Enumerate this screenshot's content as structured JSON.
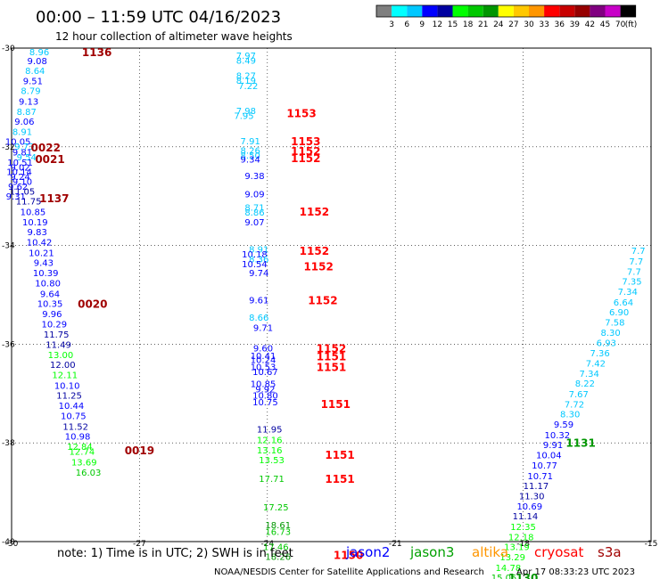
{
  "header": {
    "title": "00:00 – 11:59 UTC 04/16/2023",
    "subtitle": "12 hour collection of altimeter wave heights"
  },
  "colorbar": {
    "labels": [
      "3",
      "6",
      "9",
      "12",
      "15",
      "18",
      "21",
      "24",
      "27",
      "30",
      "33",
      "36",
      "39",
      "42",
      "45",
      "70"
    ],
    "unit": "(ft)",
    "colors": [
      "#7f7f7f",
      "#00ffff",
      "#00c8ff",
      "#0000ff",
      "#0000a0",
      "#00ff00",
      "#00c800",
      "#009600",
      "#ffff00",
      "#ffc800",
      "#ff9600",
      "#ff0000",
      "#c80000",
      "#960000",
      "#800080",
      "#c800c8",
      "#000000"
    ]
  },
  "footer": {
    "note": "note: 1) Time is in UTC; 2) SWH is in feet",
    "credit": "NOAA/NESDIS Center for Satellite Applications and Research",
    "timestamp": "Apr 17 08:33:23 UTC 2023",
    "satellites": [
      {
        "name": "jason2",
        "color": "#0000ff"
      },
      {
        "name": "jason3",
        "color": "#00a000"
      },
      {
        "name": "altika",
        "color": "#ff9600"
      },
      {
        "name": "cryosat",
        "color": "#ff0000"
      },
      {
        "name": "s3a",
        "color": "#a00000"
      }
    ]
  },
  "chart_data": {
    "type": "scatter",
    "xlim": [
      -30,
      -15
    ],
    "ylim": [
      -40,
      -30
    ],
    "x_ticks": [
      "-30",
      "-27",
      "-24",
      "-21",
      "-18",
      "-15"
    ],
    "y_ticks": [
      "-30",
      "-32",
      "-34",
      "-36",
      "-38",
      "-40"
    ],
    "grid": true,
    "points": [
      {
        "x": -29.35,
        "y": -30.07,
        "v": "8.96",
        "c": "#00c8ff"
      },
      {
        "x": -29.4,
        "y": -30.25,
        "v": "9.08",
        "c": "#0000ff"
      },
      {
        "x": -29.45,
        "y": -30.45,
        "v": "8.64",
        "c": "#00c8ff"
      },
      {
        "x": -29.5,
        "y": -30.66,
        "v": "9.51",
        "c": "#0000ff"
      },
      {
        "x": -29.55,
        "y": -30.86,
        "v": "8.79",
        "c": "#00c8ff"
      },
      {
        "x": -29.6,
        "y": -31.07,
        "v": "9.13",
        "c": "#0000ff"
      },
      {
        "x": -29.65,
        "y": -31.28,
        "v": "8.87",
        "c": "#00c8ff"
      },
      {
        "x": -29.7,
        "y": -31.48,
        "v": "9.06",
        "c": "#0000ff"
      },
      {
        "x": -29.75,
        "y": -31.69,
        "v": "8.91",
        "c": "#00c8ff"
      },
      {
        "x": -29.85,
        "y": -31.89,
        "v": "10.05",
        "c": "#0000ff"
      },
      {
        "x": -29.7,
        "y": -31.99,
        "v": "9.73",
        "c": "#00c8ff"
      },
      {
        "x": -29.75,
        "y": -32.1,
        "v": "9.81",
        "c": "#0000ff"
      },
      {
        "x": -29.65,
        "y": -32.2,
        "v": "9.54",
        "c": "#00c8ff"
      },
      {
        "x": -29.8,
        "y": -32.31,
        "v": "10.51",
        "c": "#0000ff"
      },
      {
        "x": -29.8,
        "y": -32.41,
        "v": "9.02",
        "c": "#0000ff"
      },
      {
        "x": -29.82,
        "y": -32.5,
        "v": "10.14",
        "c": "#0000ff"
      },
      {
        "x": -29.8,
        "y": -32.6,
        "v": "9.24",
        "c": "#0000ff"
      },
      {
        "x": -29.75,
        "y": -32.7,
        "v": "9.10",
        "c": "#0000ff"
      },
      {
        "x": -29.85,
        "y": -32.8,
        "v": "9.62",
        "c": "#0000ff"
      },
      {
        "x": -29.75,
        "y": -32.9,
        "v": "11.05",
        "c": "#0000a0"
      },
      {
        "x": -29.9,
        "y": -33.0,
        "v": "9.31",
        "c": "#0000ff"
      },
      {
        "x": -29.6,
        "y": -33.1,
        "v": "11.75",
        "c": "#0000a0"
      },
      {
        "x": -29.5,
        "y": -33.31,
        "v": "10.85",
        "c": "#0000ff"
      },
      {
        "x": -29.45,
        "y": -33.52,
        "v": "10.19",
        "c": "#0000ff"
      },
      {
        "x": -29.4,
        "y": -33.72,
        "v": "9.83",
        "c": "#0000ff"
      },
      {
        "x": -29.35,
        "y": -33.93,
        "v": "10.42",
        "c": "#0000ff"
      },
      {
        "x": -29.3,
        "y": -34.14,
        "v": "10.21",
        "c": "#0000ff"
      },
      {
        "x": -29.25,
        "y": -34.34,
        "v": "9.43",
        "c": "#0000ff"
      },
      {
        "x": -29.2,
        "y": -34.55,
        "v": "10.39",
        "c": "#0000ff"
      },
      {
        "x": -29.15,
        "y": -34.76,
        "v": "10.80",
        "c": "#0000ff"
      },
      {
        "x": -29.1,
        "y": -34.97,
        "v": "9.64",
        "c": "#0000ff"
      },
      {
        "x": -29.1,
        "y": -35.17,
        "v": "10.35",
        "c": "#0000ff"
      },
      {
        "x": -29.05,
        "y": -35.38,
        "v": "9.96",
        "c": "#0000ff"
      },
      {
        "x": -29.0,
        "y": -35.59,
        "v": "10.29",
        "c": "#0000ff"
      },
      {
        "x": -28.95,
        "y": -35.79,
        "v": "11.75",
        "c": "#0000a0"
      },
      {
        "x": -28.9,
        "y": -36.0,
        "v": "11.49",
        "c": "#0000a0"
      },
      {
        "x": -28.85,
        "y": -36.21,
        "v": "13.00",
        "c": "#00ff00"
      },
      {
        "x": -28.8,
        "y": -36.41,
        "v": "12.00",
        "c": "#0000a0"
      },
      {
        "x": -28.75,
        "y": -36.62,
        "v": "12.11",
        "c": "#00ff00"
      },
      {
        "x": -28.7,
        "y": -36.83,
        "v": "10.10",
        "c": "#0000ff"
      },
      {
        "x": -28.65,
        "y": -37.03,
        "v": "11.25",
        "c": "#0000a0"
      },
      {
        "x": -28.6,
        "y": -37.24,
        "v": "10.44",
        "c": "#0000ff"
      },
      {
        "x": -28.55,
        "y": -37.45,
        "v": "10.75",
        "c": "#0000ff"
      },
      {
        "x": -28.5,
        "y": -37.66,
        "v": "11.52",
        "c": "#0000a0"
      },
      {
        "x": -28.45,
        "y": -37.86,
        "v": "10.98",
        "c": "#0000ff"
      },
      {
        "x": -28.4,
        "y": -38.07,
        "v": "12.84",
        "c": "#00ff00"
      },
      {
        "x": -28.35,
        "y": -38.17,
        "v": "12.74",
        "c": "#00ff00"
      },
      {
        "x": -28.3,
        "y": -38.38,
        "v": "13.69",
        "c": "#00ff00"
      },
      {
        "x": -28.2,
        "y": -38.59,
        "v": "16.03",
        "c": "#00c800"
      },
      {
        "x": -24.5,
        "y": -30.14,
        "v": "7.97",
        "c": "#00c8ff"
      },
      {
        "x": -24.5,
        "y": -30.24,
        "v": "8.49",
        "c": "#00c8ff"
      },
      {
        "x": -24.5,
        "y": -30.55,
        "v": "8.27",
        "c": "#00c8ff"
      },
      {
        "x": -24.5,
        "y": -30.65,
        "v": "8.19",
        "c": "#00c8ff"
      },
      {
        "x": -24.45,
        "y": -30.76,
        "v": "7.22",
        "c": "#00c8ff"
      },
      {
        "x": -24.5,
        "y": -31.26,
        "v": "7.98",
        "c": "#00c8ff"
      },
      {
        "x": -24.55,
        "y": -31.36,
        "v": "7.95",
        "c": "#00c8ff"
      },
      {
        "x": -24.4,
        "y": -31.88,
        "v": "7.91",
        "c": "#00c8ff"
      },
      {
        "x": -24.4,
        "y": -32.07,
        "v": "8.26",
        "c": "#00c8ff"
      },
      {
        "x": -24.4,
        "y": -32.17,
        "v": "8.50",
        "c": "#00c8ff"
      },
      {
        "x": -24.4,
        "y": -32.25,
        "v": "9.34",
        "c": "#0000ff"
      },
      {
        "x": -24.3,
        "y": -32.58,
        "v": "9.38",
        "c": "#0000ff"
      },
      {
        "x": -24.3,
        "y": -32.95,
        "v": "9.09",
        "c": "#0000ff"
      },
      {
        "x": -24.3,
        "y": -33.22,
        "v": "8.71",
        "c": "#00c8ff"
      },
      {
        "x": -24.3,
        "y": -33.32,
        "v": "8.86",
        "c": "#00c8ff"
      },
      {
        "x": -24.3,
        "y": -33.52,
        "v": "9.07",
        "c": "#0000ff"
      },
      {
        "x": -24.2,
        "y": -34.07,
        "v": "8.91",
        "c": "#00c8ff"
      },
      {
        "x": -24.3,
        "y": -34.17,
        "v": "10.18",
        "c": "#0000ff"
      },
      {
        "x": -24.2,
        "y": -34.27,
        "v": "8.36",
        "c": "#00c8ff"
      },
      {
        "x": -24.3,
        "y": -34.37,
        "v": "10.54",
        "c": "#0000ff"
      },
      {
        "x": -24.2,
        "y": -34.55,
        "v": "9.74",
        "c": "#0000ff"
      },
      {
        "x": -24.2,
        "y": -35.1,
        "v": "9.61",
        "c": "#0000ff"
      },
      {
        "x": -24.2,
        "y": -35.45,
        "v": "8.66",
        "c": "#00c8ff"
      },
      {
        "x": -24.1,
        "y": -35.66,
        "v": "9.71",
        "c": "#0000ff"
      },
      {
        "x": -24.1,
        "y": -36.07,
        "v": "9.60",
        "c": "#0000ff"
      },
      {
        "x": -24.1,
        "y": -36.23,
        "v": "10.41",
        "c": "#0000ff"
      },
      {
        "x": -24.1,
        "y": -36.31,
        "v": "10.24",
        "c": "#0000ff"
      },
      {
        "x": -24.1,
        "y": -36.45,
        "v": "10.53",
        "c": "#0000ff"
      },
      {
        "x": -24.05,
        "y": -36.55,
        "v": "10.67",
        "c": "#0000ff"
      },
      {
        "x": -24.1,
        "y": -36.8,
        "v": "10.85",
        "c": "#0000ff"
      },
      {
        "x": -24.05,
        "y": -36.9,
        "v": "9.92",
        "c": "#0000ff"
      },
      {
        "x": -24.05,
        "y": -37.03,
        "v": "10.80",
        "c": "#0000ff"
      },
      {
        "x": -24.05,
        "y": -37.17,
        "v": "10.75",
        "c": "#0000ff"
      },
      {
        "x": -23.95,
        "y": -37.72,
        "v": "11.95",
        "c": "#0000a0"
      },
      {
        "x": -23.95,
        "y": -37.93,
        "v": "12.16",
        "c": "#00ff00"
      },
      {
        "x": -23.95,
        "y": -38.14,
        "v": "13.16",
        "c": "#00ff00"
      },
      {
        "x": -23.9,
        "y": -38.34,
        "v": "13.53",
        "c": "#00ff00"
      },
      {
        "x": -23.9,
        "y": -38.72,
        "v": "17.71",
        "c": "#00c800"
      },
      {
        "x": -23.8,
        "y": -39.3,
        "v": "17.25",
        "c": "#00c800"
      },
      {
        "x": -23.75,
        "y": -39.66,
        "v": "18.61",
        "c": "#009600"
      },
      {
        "x": -23.75,
        "y": -39.79,
        "v": "16.73",
        "c": "#00c800"
      },
      {
        "x": -23.8,
        "y": -40.1,
        "v": "17.46",
        "c": "#00c800"
      },
      {
        "x": -23.75,
        "y": -40.3,
        "v": "18.26",
        "c": "#009600"
      },
      {
        "x": -15.3,
        "y": -34.1,
        "v": "7.7",
        "c": "#00c8ff"
      },
      {
        "x": -15.35,
        "y": -34.31,
        "v": "7.7",
        "c": "#00c8ff"
      },
      {
        "x": -15.4,
        "y": -34.52,
        "v": "7.7",
        "c": "#00c8ff"
      },
      {
        "x": -15.45,
        "y": -34.72,
        "v": "7.35",
        "c": "#00c8ff"
      },
      {
        "x": -15.55,
        "y": -34.93,
        "v": "7.34",
        "c": "#00c8ff"
      },
      {
        "x": -15.65,
        "y": -35.14,
        "v": "6.64",
        "c": "#00c8ff"
      },
      {
        "x": -15.75,
        "y": -35.34,
        "v": "6.90",
        "c": "#00c8ff"
      },
      {
        "x": -15.85,
        "y": -35.55,
        "v": "7.58",
        "c": "#00c8ff"
      },
      {
        "x": -15.95,
        "y": -35.76,
        "v": "8.30",
        "c": "#00c8ff"
      },
      {
        "x": -16.05,
        "y": -35.97,
        "v": "6.93",
        "c": "#00c8ff"
      },
      {
        "x": -16.2,
        "y": -36.17,
        "v": "7.36",
        "c": "#00c8ff"
      },
      {
        "x": -16.3,
        "y": -36.38,
        "v": "7.42",
        "c": "#00c8ff"
      },
      {
        "x": -16.45,
        "y": -36.59,
        "v": "7.34",
        "c": "#00c8ff"
      },
      {
        "x": -16.55,
        "y": -36.79,
        "v": "8.22",
        "c": "#00c8ff"
      },
      {
        "x": -16.7,
        "y": -37.0,
        "v": "7.67",
        "c": "#00c8ff"
      },
      {
        "x": -16.8,
        "y": -37.21,
        "v": "7.72",
        "c": "#00c8ff"
      },
      {
        "x": -16.9,
        "y": -37.41,
        "v": "8.30",
        "c": "#00c8ff"
      },
      {
        "x": -17.05,
        "y": -37.62,
        "v": "9.59",
        "c": "#0000ff"
      },
      {
        "x": -17.2,
        "y": -37.83,
        "v": "10.32",
        "c": "#0000ff"
      },
      {
        "x": -17.3,
        "y": -38.03,
        "v": "9.91",
        "c": "#0000ff"
      },
      {
        "x": -17.4,
        "y": -38.24,
        "v": "10.04",
        "c": "#0000ff"
      },
      {
        "x": -17.5,
        "y": -38.45,
        "v": "10.77",
        "c": "#0000ff"
      },
      {
        "x": -17.6,
        "y": -38.66,
        "v": "10.71",
        "c": "#0000ff"
      },
      {
        "x": -17.7,
        "y": -38.86,
        "v": "11.17",
        "c": "#0000a0"
      },
      {
        "x": -17.8,
        "y": -39.07,
        "v": "11.30",
        "c": "#0000a0"
      },
      {
        "x": -17.85,
        "y": -39.28,
        "v": "10.69",
        "c": "#0000ff"
      },
      {
        "x": -17.95,
        "y": -39.48,
        "v": "11.14",
        "c": "#0000a0"
      },
      {
        "x": -18.0,
        "y": -39.69,
        "v": "12.35",
        "c": "#00ff00"
      },
      {
        "x": -18.05,
        "y": -39.9,
        "v": "12.18",
        "c": "#00ff00"
      },
      {
        "x": -18.15,
        "y": -40.1,
        "v": "13.19",
        "c": "#00ff00"
      },
      {
        "x": -18.25,
        "y": -40.31,
        "v": "13.29",
        "c": "#00ff00"
      },
      {
        "x": -18.35,
        "y": -40.52,
        "v": "14.78",
        "c": "#00ff00"
      },
      {
        "x": -18.45,
        "y": -40.72,
        "v": "15.05",
        "c": "#00c800"
      }
    ],
    "time_labels": [
      {
        "x": -28.0,
        "y": -30.07,
        "t": "1136",
        "c": "#a00000"
      },
      {
        "x": -29.2,
        "y": -32.0,
        "t": "0022",
        "c": "#a00000"
      },
      {
        "x": -29.1,
        "y": -32.24,
        "t": "0021",
        "c": "#a00000"
      },
      {
        "x": -29.0,
        "y": -33.03,
        "t": "1137",
        "c": "#a00000"
      },
      {
        "x": -28.1,
        "y": -35.17,
        "t": "0020",
        "c": "#a00000"
      },
      {
        "x": -27.0,
        "y": -38.14,
        "t": "0019",
        "c": "#a00000"
      },
      {
        "x": -23.2,
        "y": -31.31,
        "t": "1153",
        "c": "#ff0000"
      },
      {
        "x": -23.1,
        "y": -31.88,
        "t": "1153",
        "c": "#ff0000"
      },
      {
        "x": -23.1,
        "y": -32.08,
        "t": "1152",
        "c": "#ff0000"
      },
      {
        "x": -23.1,
        "y": -32.22,
        "t": "1152",
        "c": "#ff0000"
      },
      {
        "x": -22.9,
        "y": -33.3,
        "t": "1152",
        "c": "#ff0000"
      },
      {
        "x": -22.9,
        "y": -34.1,
        "t": "1152",
        "c": "#ff0000"
      },
      {
        "x": -22.8,
        "y": -34.41,
        "t": "1152",
        "c": "#ff0000"
      },
      {
        "x": -22.7,
        "y": -35.1,
        "t": "1152",
        "c": "#ff0000"
      },
      {
        "x": -22.5,
        "y": -36.07,
        "t": "1152",
        "c": "#ff0000"
      },
      {
        "x": -22.5,
        "y": -36.24,
        "t": "1151",
        "c": "#ff0000"
      },
      {
        "x": -22.5,
        "y": -36.45,
        "t": "1151",
        "c": "#ff0000"
      },
      {
        "x": -22.4,
        "y": -37.2,
        "t": "1151",
        "c": "#ff0000"
      },
      {
        "x": -22.3,
        "y": -38.23,
        "t": "1151",
        "c": "#ff0000"
      },
      {
        "x": -22.3,
        "y": -38.72,
        "t": "1151",
        "c": "#ff0000"
      },
      {
        "x": -22.1,
        "y": -40.26,
        "t": "1150",
        "c": "#ff0000"
      },
      {
        "x": -16.65,
        "y": -37.99,
        "t": "1131",
        "c": "#009600"
      },
      {
        "x": -18.0,
        "y": -40.72,
        "t": "1130",
        "c": "#009600"
      }
    ]
  }
}
